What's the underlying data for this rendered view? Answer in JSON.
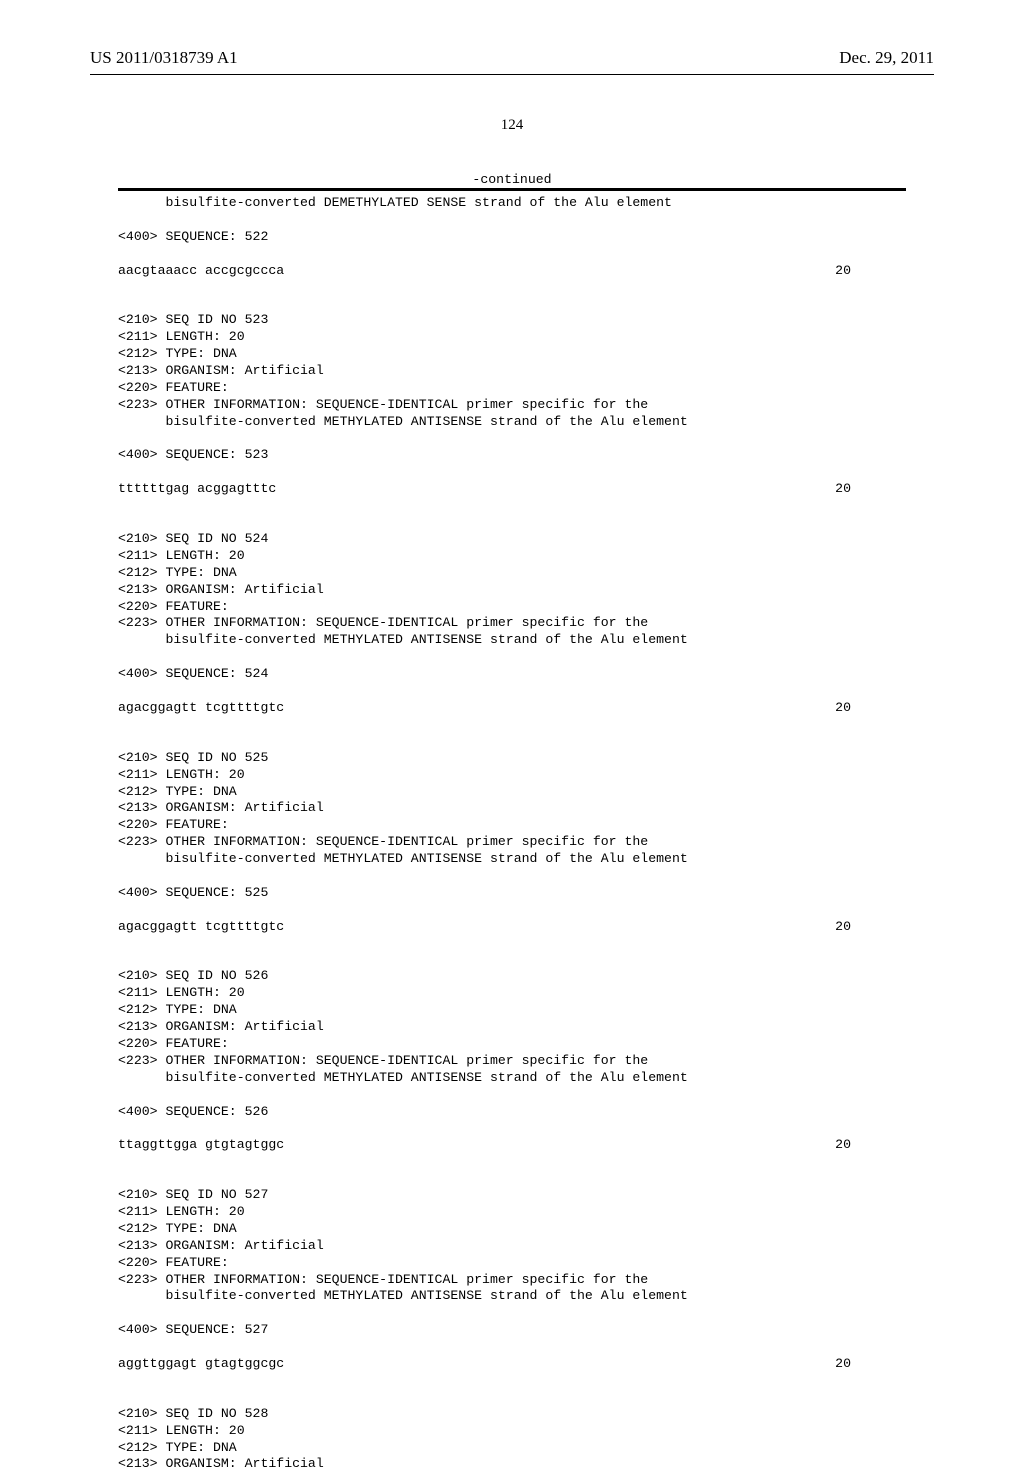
{
  "header": {
    "patent_number": "US 2011/0318739 A1",
    "date": "Dec. 29, 2011"
  },
  "page_number": "124",
  "continued_label": "-continued",
  "blocks": [
    {
      "lines": [
        "      bisulfite-converted DEMETHYLATED SENSE strand of the Alu element",
        "",
        "<400> SEQUENCE: 522"
      ],
      "sequence": "aacgtaaacc accgcgccca",
      "seq_len": "20"
    },
    {
      "lines": [
        "<210> SEQ ID NO 523",
        "<211> LENGTH: 20",
        "<212> TYPE: DNA",
        "<213> ORGANISM: Artificial",
        "<220> FEATURE:",
        "<223> OTHER INFORMATION: SEQUENCE-IDENTICAL primer specific for the",
        "      bisulfite-converted METHYLATED ANTISENSE strand of the Alu element",
        "",
        "<400> SEQUENCE: 523"
      ],
      "sequence": "ttttttgag acggagtttc",
      "seq_len": "20"
    },
    {
      "lines": [
        "<210> SEQ ID NO 524",
        "<211> LENGTH: 20",
        "<212> TYPE: DNA",
        "<213> ORGANISM: Artificial",
        "<220> FEATURE:",
        "<223> OTHER INFORMATION: SEQUENCE-IDENTICAL primer specific for the",
        "      bisulfite-converted METHYLATED ANTISENSE strand of the Alu element",
        "",
        "<400> SEQUENCE: 524"
      ],
      "sequence": "agacggagtt tcgttttgtc",
      "seq_len": "20"
    },
    {
      "lines": [
        "<210> SEQ ID NO 525",
        "<211> LENGTH: 20",
        "<212> TYPE: DNA",
        "<213> ORGANISM: Artificial",
        "<220> FEATURE:",
        "<223> OTHER INFORMATION: SEQUENCE-IDENTICAL primer specific for the",
        "      bisulfite-converted METHYLATED ANTISENSE strand of the Alu element",
        "",
        "<400> SEQUENCE: 525"
      ],
      "sequence": "agacggagtt tcgttttgtc",
      "seq_len": "20"
    },
    {
      "lines": [
        "<210> SEQ ID NO 526",
        "<211> LENGTH: 20",
        "<212> TYPE: DNA",
        "<213> ORGANISM: Artificial",
        "<220> FEATURE:",
        "<223> OTHER INFORMATION: SEQUENCE-IDENTICAL primer specific for the",
        "      bisulfite-converted METHYLATED ANTISENSE strand of the Alu element",
        "",
        "<400> SEQUENCE: 526"
      ],
      "sequence": "ttaggttgga gtgtagtggc",
      "seq_len": "20"
    },
    {
      "lines": [
        "<210> SEQ ID NO 527",
        "<211> LENGTH: 20",
        "<212> TYPE: DNA",
        "<213> ORGANISM: Artificial",
        "<220> FEATURE:",
        "<223> OTHER INFORMATION: SEQUENCE-IDENTICAL primer specific for the",
        "      bisulfite-converted METHYLATED ANTISENSE strand of the Alu element",
        "",
        "<400> SEQUENCE: 527"
      ],
      "sequence": "aggttggagt gtagtggcgc",
      "seq_len": "20"
    },
    {
      "lines": [
        "<210> SEQ ID NO 528",
        "<211> LENGTH: 20",
        "<212> TYPE: DNA",
        "<213> ORGANISM: Artificial"
      ],
      "sequence": null,
      "seq_len": null
    }
  ]
}
